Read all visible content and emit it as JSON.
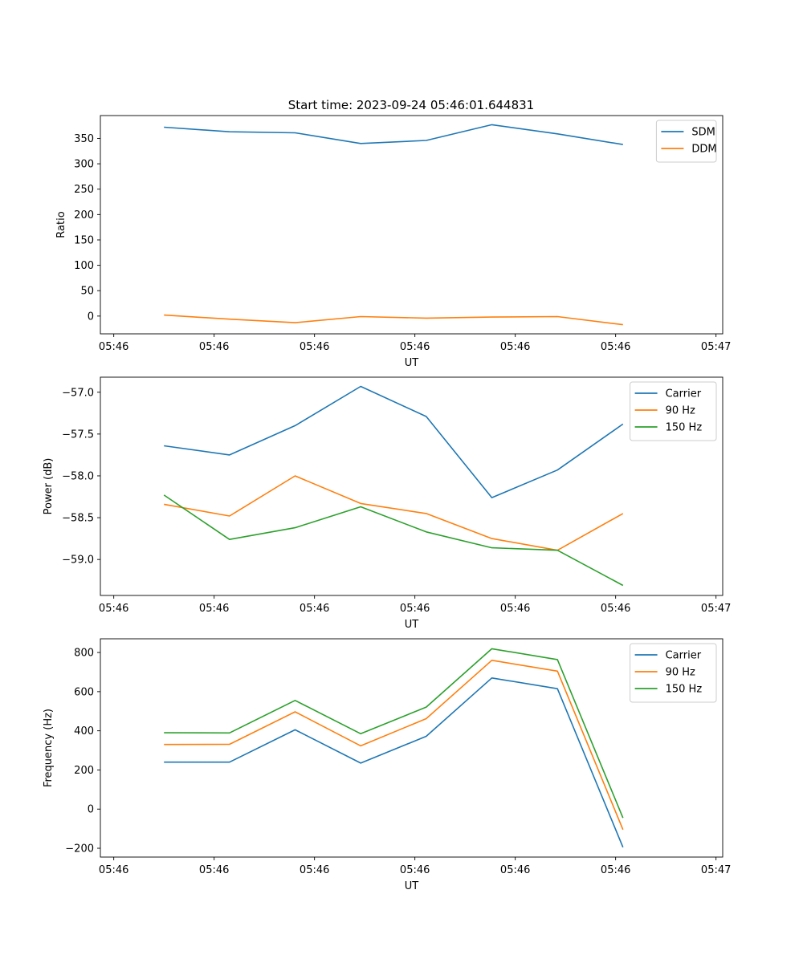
{
  "title": "Start time: 2023-09-24 05:46:01.644831",
  "colors": {
    "blue": "#1f77b4",
    "orange": "#ff7f0e",
    "green": "#2ca02c"
  },
  "chart_data": [
    {
      "type": "line",
      "xlabel": "UT",
      "ylabel": "Ratio",
      "ylim": [
        -35,
        395
      ],
      "yticks": [
        0,
        50,
        100,
        150,
        200,
        250,
        300,
        350
      ],
      "xlim": [
        -0.2,
        9.1
      ],
      "x_tick_positions": [
        0,
        1.5,
        3,
        4.5,
        6,
        7.5,
        9
      ],
      "x_tick_labels": [
        "05:46",
        "05:46",
        "05:46",
        "05:46",
        "05:46",
        "05:46",
        "05:47"
      ],
      "x": [
        0.75,
        1.73,
        2.71,
        3.69,
        4.67,
        5.65,
        6.63,
        7.61
      ],
      "legend": "top-right",
      "grid": false,
      "series": [
        {
          "name": "SDM",
          "color": "#1f77b4",
          "values": [
            372,
            363,
            361,
            340,
            346,
            377,
            359,
            338
          ]
        },
        {
          "name": "DDM",
          "color": "#ff7f0e",
          "values": [
            2,
            -6,
            -13,
            -1,
            -4,
            -2,
            -1,
            -17
          ]
        }
      ]
    },
    {
      "type": "line",
      "xlabel": "UT",
      "ylabel": "Power (dB)",
      "ylim": [
        -59.43,
        -56.82
      ],
      "yticks": [
        -59.0,
        -58.5,
        -58.0,
        -57.5,
        -57.0
      ],
      "ytick_labels": [
        "−59.0",
        "−58.5",
        "−58.0",
        "−57.5",
        "−57.0"
      ],
      "xlim": [
        -0.2,
        9.1
      ],
      "x_tick_positions": [
        0,
        1.5,
        3,
        4.5,
        6,
        7.5,
        9
      ],
      "x_tick_labels": [
        "05:46",
        "05:46",
        "05:46",
        "05:46",
        "05:46",
        "05:46",
        "05:47"
      ],
      "x": [
        0.75,
        1.73,
        2.71,
        3.69,
        4.67,
        5.65,
        6.63,
        7.61
      ],
      "legend": "top-right",
      "grid": false,
      "series": [
        {
          "name": "Carrier",
          "color": "#1f77b4",
          "values": [
            -57.64,
            -57.75,
            -57.4,
            -56.93,
            -57.29,
            -58.26,
            -57.93,
            -57.38
          ]
        },
        {
          "name": "90 Hz",
          "color": "#ff7f0e",
          "values": [
            -58.34,
            -58.48,
            -58.0,
            -58.33,
            -58.45,
            -58.75,
            -58.89,
            -58.45
          ]
        },
        {
          "name": "150 Hz",
          "color": "#2ca02c",
          "values": [
            -58.23,
            -58.76,
            -58.62,
            -58.37,
            -58.67,
            -58.86,
            -58.89,
            -59.31
          ]
        }
      ]
    },
    {
      "type": "line",
      "xlabel": "UT",
      "ylabel": "Frequency (Hz)",
      "ylim": [
        -245,
        870
      ],
      "yticks": [
        -200,
        0,
        200,
        400,
        600,
        800
      ],
      "ytick_labels": [
        "−200",
        "0",
        "200",
        "400",
        "600",
        "800"
      ],
      "xlim": [
        -0.2,
        9.1
      ],
      "x_tick_positions": [
        0,
        1.5,
        3,
        4.5,
        6,
        7.5,
        9
      ],
      "x_tick_labels": [
        "05:46",
        "05:46",
        "05:46",
        "05:46",
        "05:46",
        "05:46",
        "05:47"
      ],
      "x": [
        0.75,
        1.73,
        2.71,
        3.69,
        4.67,
        5.65,
        6.63,
        7.61
      ],
      "legend": "top-right",
      "grid": false,
      "series": [
        {
          "name": "Carrier",
          "color": "#1f77b4",
          "values": [
            240,
            240,
            405,
            235,
            372,
            670,
            615,
            -195
          ]
        },
        {
          "name": "90 Hz",
          "color": "#ff7f0e",
          "values": [
            330,
            331,
            497,
            323,
            462,
            760,
            705,
            -105
          ]
        },
        {
          "name": "150 Hz",
          "color": "#2ca02c",
          "values": [
            390,
            389,
            555,
            385,
            521,
            819,
            764,
            -45
          ]
        }
      ]
    }
  ]
}
